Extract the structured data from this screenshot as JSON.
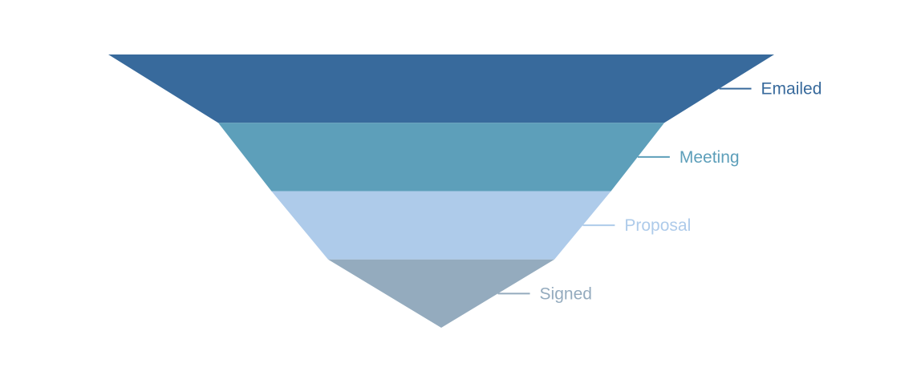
{
  "chart_data": {
    "type": "funnel",
    "title": "",
    "categories": [
      "Emailed",
      "Meeting",
      "Proposal",
      "Signed"
    ],
    "values": [
      100,
      67,
      51,
      34
    ],
    "min": 0,
    "max": 100,
    "sort": "descending",
    "legend": "none",
    "label_position": "right",
    "colors": [
      "#386a9c",
      "#5d9fba",
      "#aecbea",
      "#94abbe"
    ]
  }
}
